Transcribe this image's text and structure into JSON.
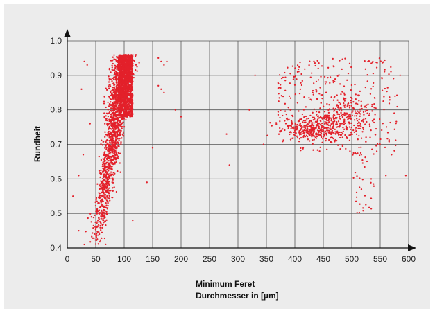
{
  "chart_data": {
    "type": "scatter",
    "title": "",
    "xlabel_line1": "Minimum Feret",
    "xlabel_line2": "Durchmesser in [µm]",
    "ylabel": "Rundheit",
    "xlim": [
      0,
      600
    ],
    "ylim": [
      0.4,
      1.0
    ],
    "x_ticks": [
      0,
      50,
      100,
      150,
      200,
      250,
      300,
      350,
      400,
      450,
      500,
      550,
      600
    ],
    "y_ticks": [
      "0.4",
      "0.5",
      "0.6",
      "0.7",
      "0.8",
      "0.9",
      "1.0"
    ],
    "grid": true,
    "legend": "none",
    "marker_color": "#e3202a",
    "series": [
      {
        "clusters": [
          {
            "description": "dense band",
            "x_range": [
              45,
              115
            ],
            "y_range": [
              0.4,
              0.96
            ],
            "approx_points": 1800
          },
          {
            "description": "saturated top column",
            "x_range": [
              90,
              115
            ],
            "y_range": [
              0.78,
              0.96
            ],
            "approx_points": 900
          },
          {
            "description": "right cloud",
            "x_range": [
              360,
              580
            ],
            "y_range": [
              0.68,
              0.95
            ],
            "approx_points": 850
          },
          {
            "description": "right tail",
            "x_range": [
              500,
              540
            ],
            "y_range": [
              0.49,
              0.68
            ],
            "approx_points": 40
          }
        ],
        "outliers": [
          [
            20,
            0.61
          ],
          [
            25,
            0.86
          ],
          [
            30,
            0.94
          ],
          [
            35,
            0.93
          ],
          [
            28,
            0.67
          ],
          [
            40,
            0.76
          ],
          [
            160,
            0.95
          ],
          [
            165,
            0.94
          ],
          [
            170,
            0.93
          ],
          [
            175,
            0.94
          ],
          [
            160,
            0.87
          ],
          [
            165,
            0.86
          ],
          [
            170,
            0.85
          ],
          [
            150,
            0.69
          ],
          [
            140,
            0.59
          ],
          [
            115,
            0.48
          ],
          [
            190,
            0.8
          ],
          [
            280,
            0.73
          ],
          [
            285,
            0.64
          ],
          [
            320,
            0.8
          ],
          [
            330,
            0.9
          ],
          [
            345,
            0.7
          ],
          [
            595,
            0.61
          ],
          [
            585,
            0.9
          ],
          [
            570,
            0.67
          ],
          [
            560,
            0.61
          ],
          [
            20,
            0.45
          ],
          [
            30,
            0.41
          ],
          [
            10,
            0.55
          ],
          [
            200,
            0.78
          ]
        ]
      }
    ]
  }
}
